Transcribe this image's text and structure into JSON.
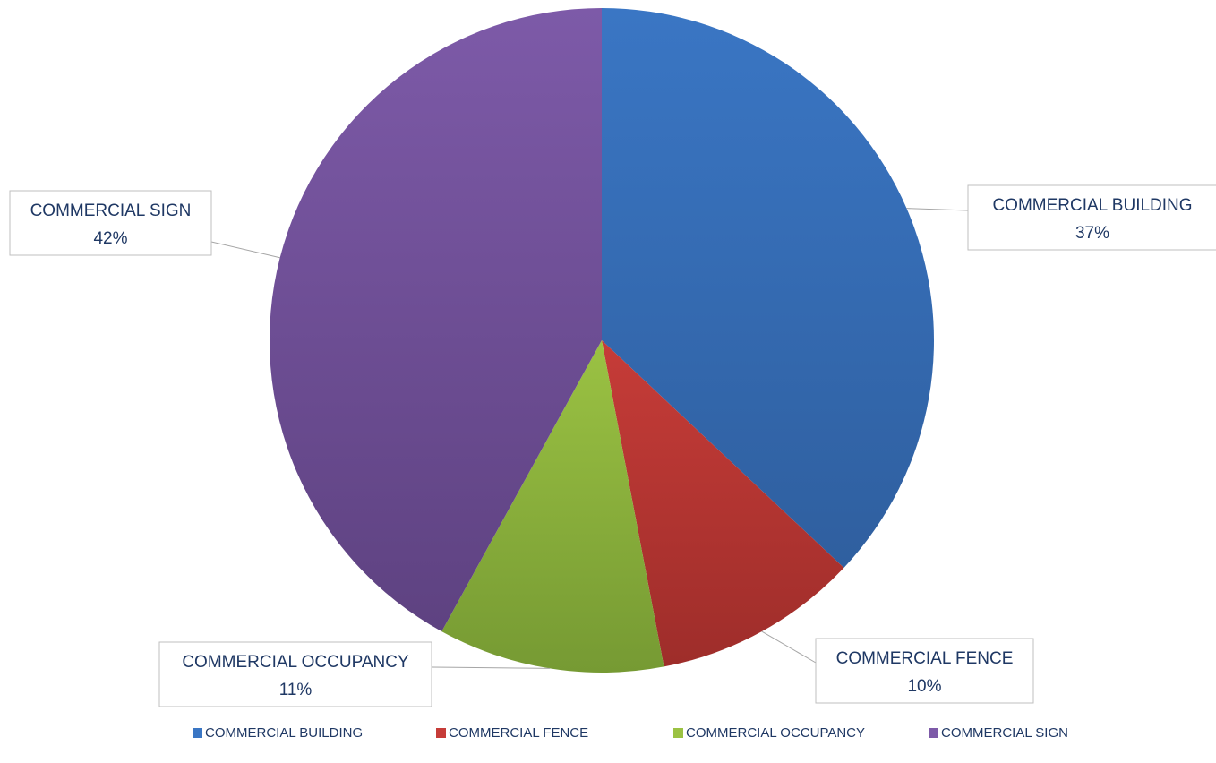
{
  "chart_data": {
    "type": "pie",
    "title": "",
    "slices": [
      {
        "name": "COMMERCIAL BUILDING",
        "label": "37%",
        "value": 37,
        "color": "#3a76c4",
        "color_dark": "#2f5f9f"
      },
      {
        "name": "COMMERCIAL FENCE",
        "label": "10%",
        "value": 10,
        "color": "#c63c38",
        "color_dark": "#9e2d2a"
      },
      {
        "name": "COMMERCIAL OCCUPANCY",
        "label": "11%",
        "value": 11,
        "color": "#9bc243",
        "color_dark": "#769a33"
      },
      {
        "name": "COMMERCIAL SIGN",
        "label": "42%",
        "value": 42,
        "color": "#7d5aa8",
        "color_dark": "#5e4281"
      }
    ],
    "legend_position": "bottom",
    "start_angle": "12 o'clock",
    "direction": "clockwise"
  }
}
